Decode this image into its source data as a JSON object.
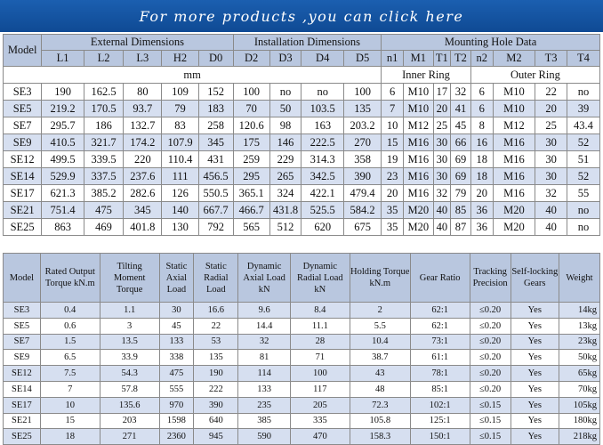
{
  "banner": {
    "text": "For more products ,you can click here"
  },
  "top_table": {
    "model_label": "Model",
    "group_external": "External Dimensions",
    "group_installation": "Installation Dimensions",
    "group_mounting": "Mounting Hole Data",
    "columns": [
      "L1",
      "L2",
      "L3",
      "H2",
      "D0",
      "D2",
      "D3",
      "D4",
      "D5",
      "n1",
      "M1",
      "T1",
      "T2",
      "n2",
      "M2",
      "T3",
      "T4"
    ],
    "unit_mm": "mm",
    "inner_ring": "Inner Ring",
    "outer_ring": "Outer Ring",
    "rows": [
      [
        "SE3",
        "190",
        "162.5",
        "80",
        "109",
        "152",
        "100",
        "no",
        "no",
        "100",
        "6",
        "M10",
        "17",
        "32",
        "6",
        "M10",
        "22",
        "no"
      ],
      [
        "SE5",
        "219.2",
        "170.5",
        "93.7",
        "79",
        "183",
        "70",
        "50",
        "103.5",
        "135",
        "7",
        "M10",
        "20",
        "41",
        "6",
        "M10",
        "20",
        "39"
      ],
      [
        "SE7",
        "295.7",
        "186",
        "132.7",
        "83",
        "258",
        "120.6",
        "98",
        "163",
        "203.2",
        "10",
        "M12",
        "25",
        "45",
        "8",
        "M12",
        "25",
        "43.4"
      ],
      [
        "SE9",
        "410.5",
        "321.7",
        "174.2",
        "107.9",
        "345",
        "175",
        "146",
        "222.5",
        "270",
        "15",
        "M16",
        "30",
        "66",
        "16",
        "M16",
        "30",
        "52"
      ],
      [
        "SE12",
        "499.5",
        "339.5",
        "220",
        "110.4",
        "431",
        "259",
        "229",
        "314.3",
        "358",
        "19",
        "M16",
        "30",
        "69",
        "18",
        "M16",
        "30",
        "51"
      ],
      [
        "SE14",
        "529.9",
        "337.5",
        "237.6",
        "111",
        "456.5",
        "295",
        "265",
        "342.5",
        "390",
        "23",
        "M16",
        "30",
        "69",
        "18",
        "M16",
        "30",
        "52"
      ],
      [
        "SE17",
        "621.3",
        "385.2",
        "282.6",
        "126",
        "550.5",
        "365.1",
        "324",
        "422.1",
        "479.4",
        "20",
        "M16",
        "32",
        "79",
        "20",
        "M16",
        "32",
        "55"
      ],
      [
        "SE21",
        "751.4",
        "475",
        "345",
        "140",
        "667.7",
        "466.7",
        "431.8",
        "525.5",
        "584.2",
        "35",
        "M20",
        "40",
        "85",
        "36",
        "M20",
        "40",
        "no"
      ],
      [
        "SE25",
        "863",
        "469",
        "401.8",
        "130",
        "792",
        "565",
        "512",
        "620",
        "675",
        "35",
        "M20",
        "40",
        "87",
        "36",
        "M20",
        "40",
        "no"
      ]
    ]
  },
  "bottom_table": {
    "headers": [
      "Model",
      "Rated Output Torque kN.m",
      "Tilting Moment Torque",
      "Static Axial Load",
      "Static Radial Load",
      "Dynamic Axial Load kN",
      "Dynamic Radial Load kN",
      "Holding Torque kN.m",
      "Gear Ratio",
      "Tracking Precision",
      "Self-locking Gears",
      "Weight"
    ],
    "rows": [
      [
        "SE3",
        "0.4",
        "1.1",
        "30",
        "16.6",
        "9.6",
        "8.4",
        "2",
        "62:1",
        "≤0.20",
        "Yes",
        "14kg"
      ],
      [
        "SE5",
        "0.6",
        "3",
        "45",
        "22",
        "14.4",
        "11.1",
        "5.5",
        "62:1",
        "≤0.20",
        "Yes",
        "13kg"
      ],
      [
        "SE7",
        "1.5",
        "13.5",
        "133",
        "53",
        "32",
        "28",
        "10.4",
        "73:1",
        "≤0.20",
        "Yes",
        "23kg"
      ],
      [
        "SE9",
        "6.5",
        "33.9",
        "338",
        "135",
        "81",
        "71",
        "38.7",
        "61:1",
        "≤0.20",
        "Yes",
        "50kg"
      ],
      [
        "SE12",
        "7.5",
        "54.3",
        "475",
        "190",
        "114",
        "100",
        "43",
        "78:1",
        "≤0.20",
        "Yes",
        "65kg"
      ],
      [
        "SE14",
        "7",
        "57.8",
        "555",
        "222",
        "133",
        "117",
        "48",
        "85:1",
        "≤0.20",
        "Yes",
        "70kg"
      ],
      [
        "SE17",
        "10",
        "135.6",
        "970",
        "390",
        "235",
        "205",
        "72.3",
        "102:1",
        "≤0.15",
        "Yes",
        "105kg"
      ],
      [
        "SE21",
        "15",
        "203",
        "1598",
        "640",
        "385",
        "335",
        "105.8",
        "125:1",
        "≤0.15",
        "Yes",
        "180kg"
      ],
      [
        "SE25",
        "18",
        "271",
        "2360",
        "945",
        "590",
        "470",
        "158.3",
        "150:1",
        "≤0.15",
        "Yes",
        "218kg"
      ]
    ]
  }
}
